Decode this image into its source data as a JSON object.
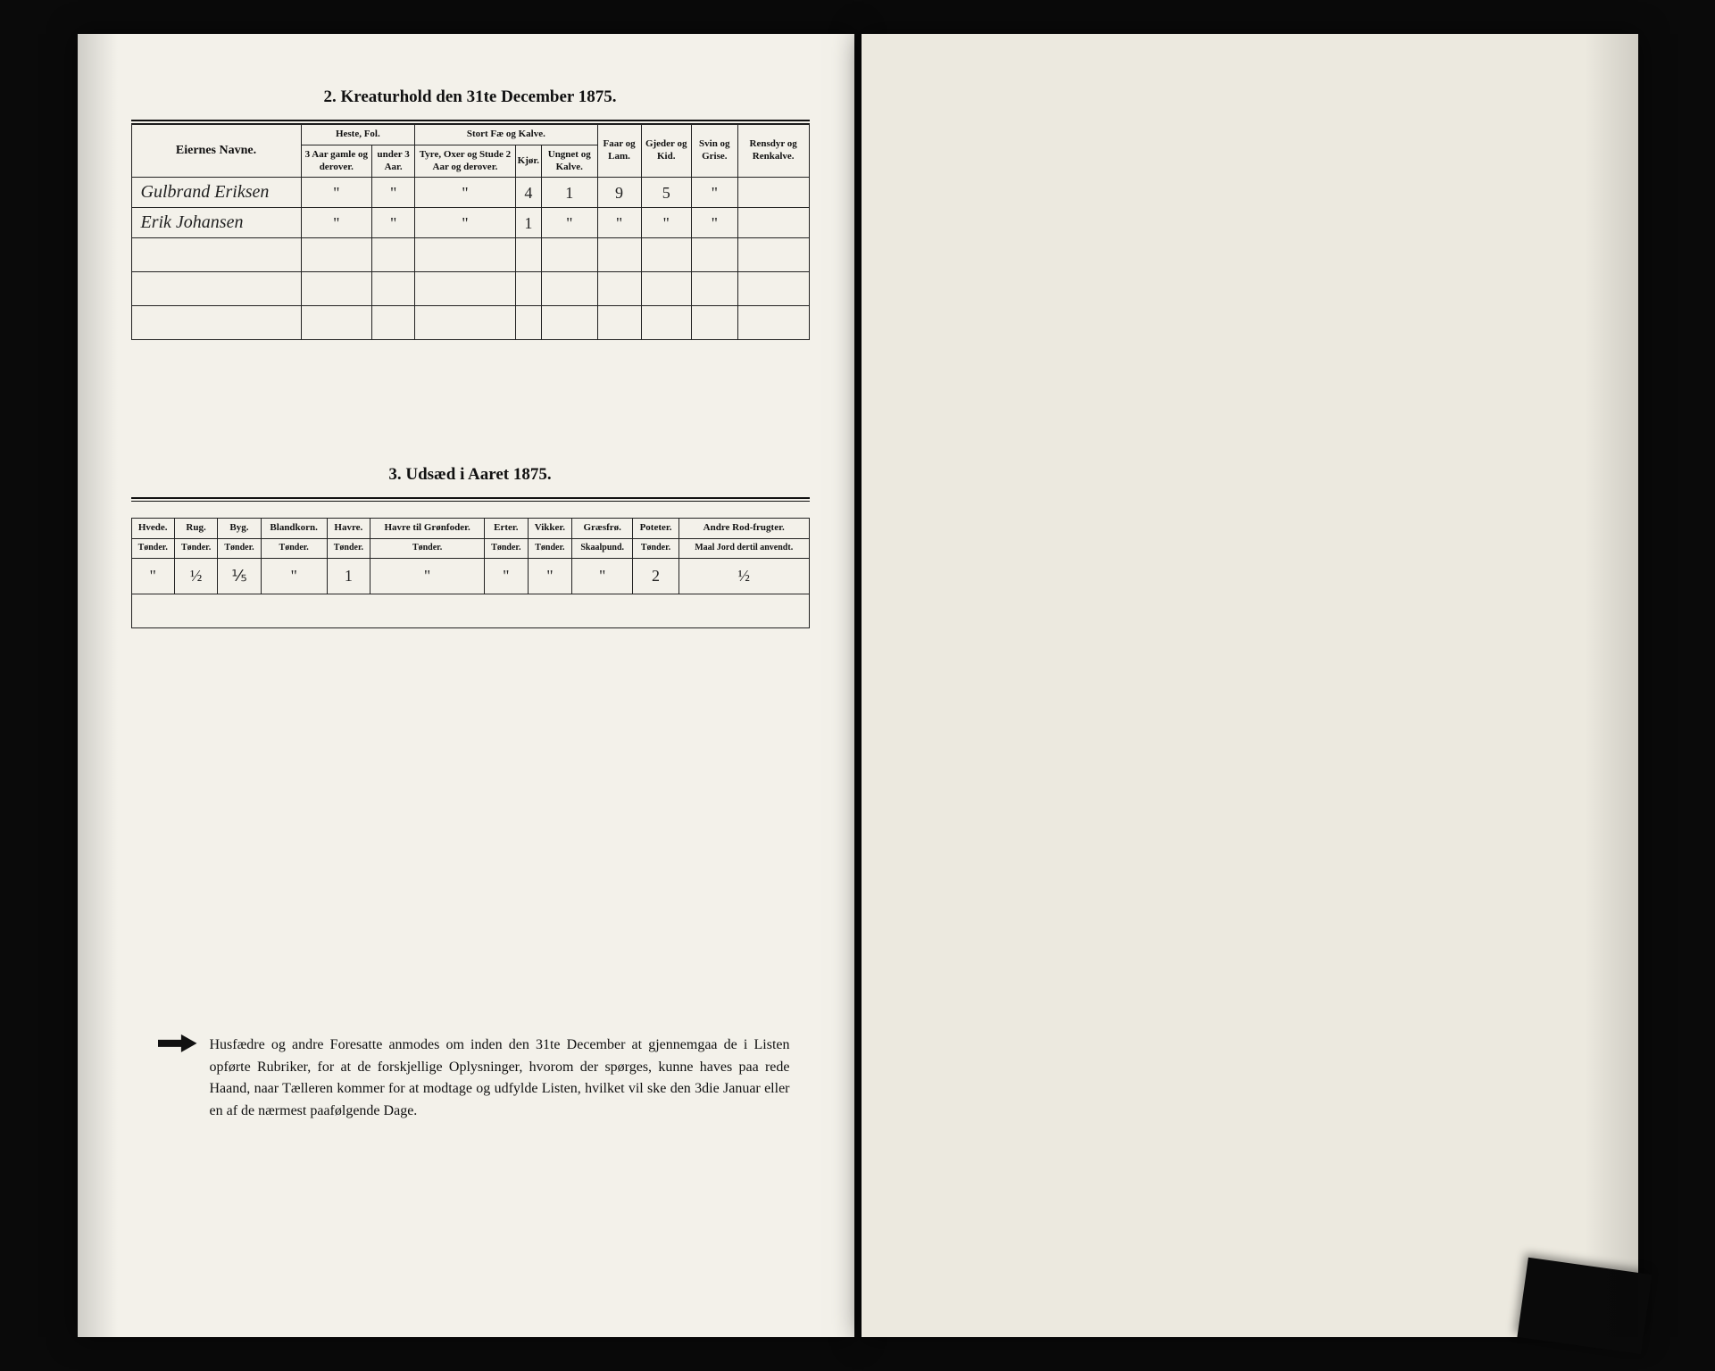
{
  "section2": {
    "title": "2.  Kreaturhold den 31te December 1875.",
    "headers": {
      "owner": "Eiernes Navne.",
      "heste_group": "Heste, Fol.",
      "heste_a": "3 Aar gamle og derover.",
      "heste_b": "under 3 Aar.",
      "stort_group": "Stort Fæ og Kalve.",
      "stort_a": "Tyre, Oxer og Stude 2 Aar og derover.",
      "stort_b": "Kjør.",
      "stort_c": "Ungnet og Kalve.",
      "faar": "Faar og Lam.",
      "gjeder": "Gjeder og Kid.",
      "svin": "Svin og Grise.",
      "ren": "Rensdyr og Renkalve."
    },
    "rows": [
      {
        "owner": "Gulbrand Eriksen",
        "cells": [
          "\"",
          "\"",
          "\"",
          "4",
          "1",
          "9",
          "5",
          "\"",
          ""
        ]
      },
      {
        "owner": "Erik Johansen",
        "cells": [
          "\"",
          "\"",
          "\"",
          "1",
          "\"",
          "\"",
          "\"",
          "\"",
          ""
        ]
      }
    ]
  },
  "section3": {
    "title": "3.  Udsæd i Aaret 1875.",
    "columns": [
      {
        "label": "Hvede.",
        "unit": "Tønder."
      },
      {
        "label": "Rug.",
        "unit": "Tønder."
      },
      {
        "label": "Byg.",
        "unit": "Tønder."
      },
      {
        "label": "Blandkorn.",
        "unit": "Tønder."
      },
      {
        "label": "Havre.",
        "unit": "Tønder."
      },
      {
        "label": "Havre til Grønfoder.",
        "unit": "Tønder."
      },
      {
        "label": "Erter.",
        "unit": "Tønder."
      },
      {
        "label": "Vikker.",
        "unit": "Tønder."
      },
      {
        "label": "Græsfrø.",
        "unit": "Skaalpund."
      },
      {
        "label": "Poteter.",
        "unit": "Tønder."
      },
      {
        "label": "Andre Rod-frugter.",
        "unit": "Maal Jord dertil anvendt."
      }
    ],
    "row": [
      "\"",
      "½",
      "⅕",
      "\"",
      "1",
      "\"",
      "\"",
      "\"",
      "\"",
      "2",
      "½"
    ]
  },
  "footer": {
    "text": "Husfædre og andre Foresatte anmodes om inden den 31te December at gjennemgaa de i Listen opførte Rubriker, for at de forskjellige Oplysninger, hvorom der spørges, kunne haves paa rede Haand, naar Tælleren kommer for at modtage og udfylde Listen, hvilket vil ske den 3die Januar eller en af de nærmest paafølgende Dage."
  },
  "style": {
    "page_bg": "#f3f1ea",
    "ink": "#111111",
    "handwriting_font": "cursive"
  }
}
